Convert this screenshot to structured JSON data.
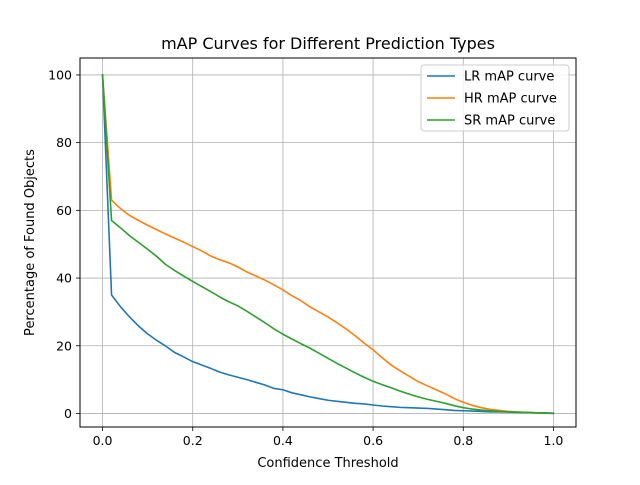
{
  "chart_data": {
    "type": "line",
    "title": "mAP Curves for Different Prediction Types",
    "xlabel": "Confidence Threshold",
    "ylabel": "Percentage of Found Objects",
    "xlim": [
      -0.05,
      1.05
    ],
    "ylim": [
      -4,
      105
    ],
    "grid": true,
    "legend_position": "top-right",
    "x_ticks": [
      0.0,
      0.2,
      0.4,
      0.6,
      0.8,
      1.0
    ],
    "x_tick_labels": [
      "0.0",
      "0.2",
      "0.4",
      "0.6",
      "0.8",
      "1.0"
    ],
    "y_ticks": [
      0,
      20,
      40,
      60,
      80,
      100
    ],
    "y_tick_labels": [
      "0",
      "20",
      "40",
      "60",
      "80",
      "100"
    ],
    "x": [
      0.0,
      0.02,
      0.04,
      0.06,
      0.08,
      0.1,
      0.12,
      0.14,
      0.16,
      0.18,
      0.2,
      0.22,
      0.24,
      0.26,
      0.28,
      0.3,
      0.32,
      0.34,
      0.36,
      0.38,
      0.4,
      0.42,
      0.44,
      0.46,
      0.48,
      0.5,
      0.52,
      0.54,
      0.56,
      0.58,
      0.6,
      0.62,
      0.64,
      0.66,
      0.68,
      0.7,
      0.72,
      0.74,
      0.76,
      0.78,
      0.8,
      0.82,
      0.84,
      0.86,
      0.88,
      0.9,
      0.92,
      0.94,
      0.96,
      0.98,
      1.0
    ],
    "series": [
      {
        "name": "LR mAP curve",
        "color": "#1f77b4",
        "values": [
          100,
          35,
          31.5,
          28.5,
          25.8,
          23.5,
          21.6,
          19.9,
          18.0,
          16.7,
          15.3,
          14.3,
          13.3,
          12.2,
          11.4,
          10.7,
          10.0,
          9.2,
          8.4,
          7.4,
          7.0,
          6.1,
          5.5,
          4.9,
          4.4,
          3.9,
          3.6,
          3.3,
          3.0,
          2.8,
          2.5,
          2.2,
          2.0,
          1.8,
          1.7,
          1.6,
          1.5,
          1.3,
          1.1,
          0.9,
          0.8,
          0.7,
          0.6,
          0.5,
          0.5,
          0.4,
          0.3,
          0.3,
          0.2,
          0.2,
          0.1
        ]
      },
      {
        "name": "HR mAP curve",
        "color": "#ff7f0e",
        "values": [
          100,
          63,
          60.5,
          58.5,
          57.0,
          55.6,
          54.3,
          53.0,
          51.8,
          50.6,
          49.3,
          48.0,
          46.5,
          45.4,
          44.5,
          43.3,
          41.8,
          40.6,
          39.4,
          38.0,
          36.5,
          34.8,
          33.3,
          31.5,
          30.0,
          28.5,
          26.8,
          25.0,
          23.0,
          20.8,
          18.8,
          16.5,
          14.3,
          12.6,
          11.0,
          9.4,
          8.2,
          7.0,
          5.8,
          4.4,
          3.3,
          2.4,
          1.7,
          1.2,
          0.9,
          0.6,
          0.4,
          0.3,
          0.2,
          0.1,
          0.0
        ]
      },
      {
        "name": "SR mAP curve",
        "color": "#2ca02c",
        "values": [
          100,
          57,
          54.8,
          52.5,
          50.5,
          48.5,
          46.4,
          44.0,
          42.2,
          40.6,
          39.0,
          37.5,
          36.0,
          34.4,
          33.0,
          31.8,
          30.2,
          28.5,
          26.8,
          25.0,
          23.4,
          22.0,
          20.6,
          19.3,
          17.8,
          16.3,
          14.8,
          13.4,
          12.0,
          10.7,
          9.5,
          8.5,
          7.6,
          6.6,
          5.7,
          4.9,
          4.2,
          3.6,
          3.0,
          2.3,
          1.7,
          1.3,
          1.0,
          0.8,
          0.6,
          0.5,
          0.4,
          0.3,
          0.2,
          0.1,
          0.0
        ]
      }
    ]
  }
}
